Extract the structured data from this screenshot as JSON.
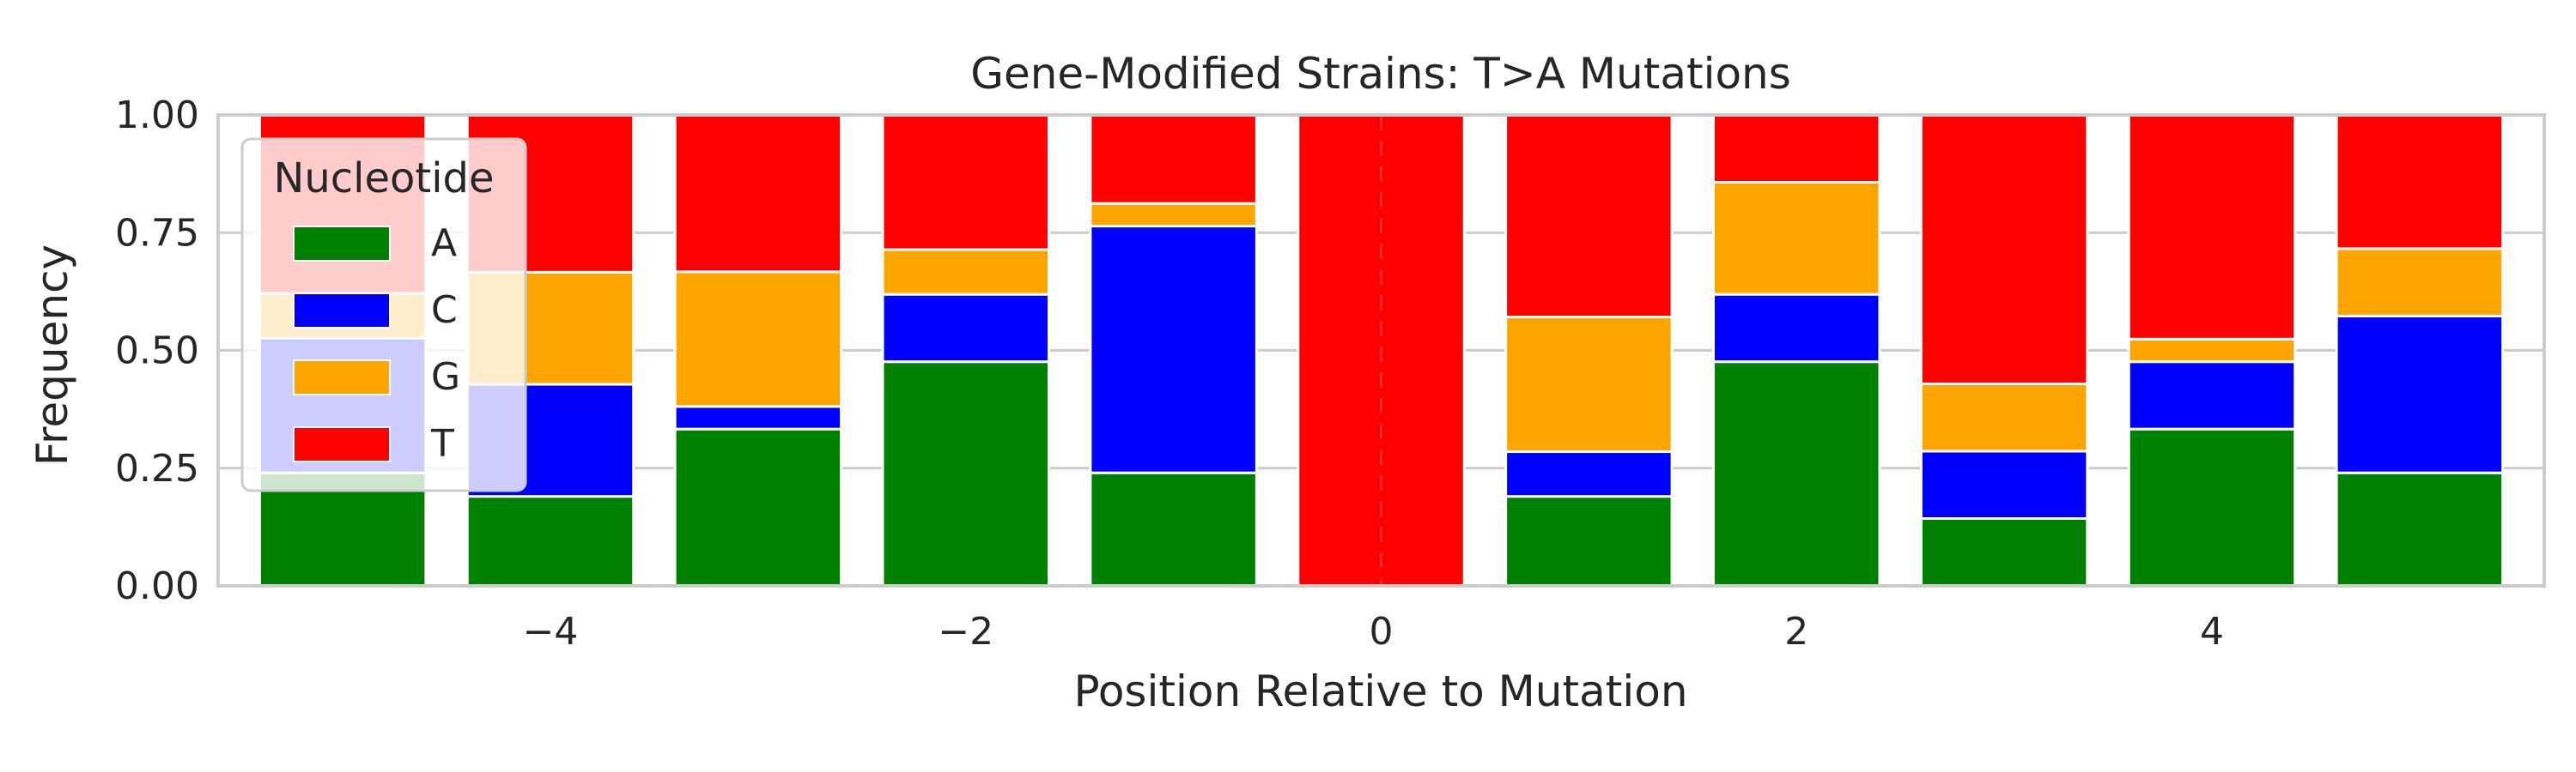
{
  "chart_data": {
    "type": "bar",
    "stacked": true,
    "title": "Gene-Modified Strains: T>A Mutations",
    "xlabel": "Position Relative to Mutation",
    "ylabel": "Frequency",
    "x": [
      -5,
      -4,
      -3,
      -2,
      -1,
      0,
      1,
      2,
      3,
      4,
      5
    ],
    "xlim": [
      -5.6,
      5.6
    ],
    "ylim": [
      0,
      1
    ],
    "xticks": [
      -4,
      -2,
      0,
      2,
      4
    ],
    "xtick_labels": [
      "−4",
      "−2",
      "0",
      "2",
      "4"
    ],
    "yticks": [
      0,
      0.25,
      0.5,
      0.75,
      1
    ],
    "ytick_labels": [
      "0.00",
      "0.25",
      "0.50",
      "0.75",
      "1.00"
    ],
    "grid": "horizontal",
    "vline_at": 0,
    "legend": {
      "title": "Nucleotide",
      "placement": "upper-left"
    },
    "series": [
      {
        "name": "A",
        "color": "#008000",
        "values": [
          0.24,
          0.19,
          0.333,
          0.476,
          0.24,
          0.0,
          0.19,
          0.476,
          0.143,
          0.333,
          0.24
        ]
      },
      {
        "name": "C",
        "color": "#0000ff",
        "values": [
          0.286,
          0.238,
          0.048,
          0.143,
          0.524,
          0.0,
          0.095,
          0.143,
          0.143,
          0.143,
          0.333
        ]
      },
      {
        "name": "G",
        "color": "#ffa500",
        "values": [
          0.095,
          0.238,
          0.286,
          0.095,
          0.048,
          0.0,
          0.286,
          0.238,
          0.143,
          0.048,
          0.143
        ]
      },
      {
        "name": "T",
        "color": "#ff0000",
        "values": [
          0.379,
          0.334,
          0.333,
          0.286,
          0.188,
          1.0,
          0.429,
          0.143,
          0.571,
          0.476,
          0.284
        ]
      }
    ]
  }
}
